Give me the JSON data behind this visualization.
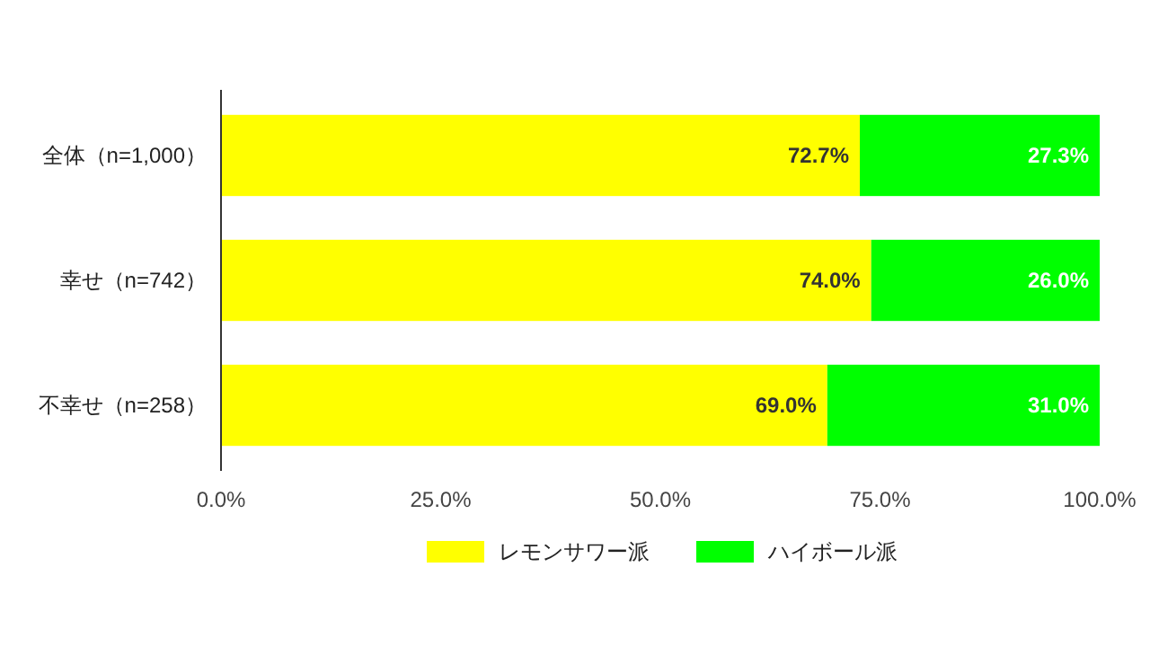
{
  "chart_data": {
    "type": "bar",
    "orientation": "horizontal",
    "stacked": true,
    "categories": [
      "全体（n=1,000）",
      "幸せ（n=742）",
      "不幸せ（n=258）"
    ],
    "series": [
      {
        "name": "レモンサワー派",
        "color": "#ffff00",
        "values": [
          72.7,
          74.0,
          69.0
        ],
        "value_labels": [
          "72.7%",
          "74.0%",
          "69.0%"
        ]
      },
      {
        "name": "ハイボール派",
        "color": "#00ff00",
        "values": [
          27.3,
          26.0,
          31.0
        ],
        "value_labels": [
          "27.3%",
          "26.0%",
          "31.0%"
        ]
      }
    ],
    "xlim": [
      0,
      100
    ],
    "xticks": [
      {
        "value": 0,
        "label": "0.0%"
      },
      {
        "value": 25,
        "label": "25.0%"
      },
      {
        "value": 50,
        "label": "50.0%"
      },
      {
        "value": 75,
        "label": "75.0%"
      },
      {
        "value": 100,
        "label": "100.0%"
      }
    ],
    "grid": false,
    "legend": "bottom"
  }
}
